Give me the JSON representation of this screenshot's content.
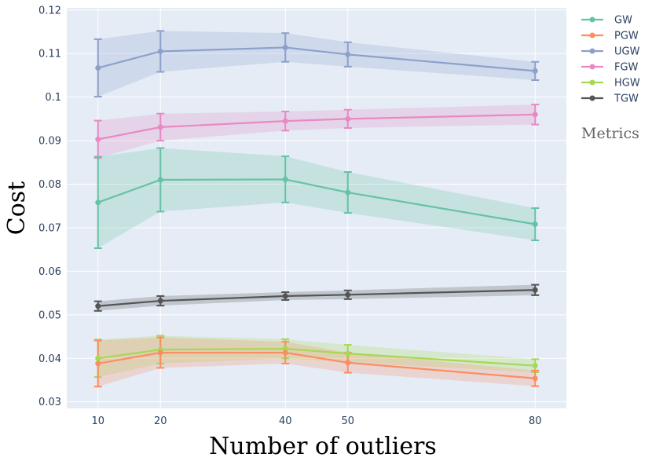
{
  "chart_data": {
    "type": "line",
    "xlabel": "Number of outliers",
    "ylabel": "Cost",
    "x": [
      10,
      20,
      40,
      50,
      80
    ],
    "x_ticks": [
      "10",
      "20",
      "40",
      "50",
      "80"
    ],
    "xlim": [
      5,
      85
    ],
    "ylim": [
      0.0285,
      0.1205
    ],
    "y_ticks": [
      "0.03",
      "0.04",
      "0.05",
      "0.06",
      "0.07",
      "0.08",
      "0.09",
      "0.1",
      "0.11",
      "0.12"
    ],
    "grid": true,
    "legend_title": "Metrics",
    "legend_position": "right",
    "series": [
      {
        "name": "GW",
        "color": "#66c2a5",
        "values": [
          0.0758,
          0.081,
          0.0811,
          0.0781,
          0.0708
        ],
        "error": [
          0.0105,
          0.0073,
          0.0053,
          0.0047,
          0.0037
        ]
      },
      {
        "name": "PGW",
        "color": "#fc8d62",
        "values": [
          0.0388,
          0.0413,
          0.0413,
          0.039,
          0.0354
        ],
        "error": [
          0.0053,
          0.0035,
          0.0025,
          0.0023,
          0.0018
        ]
      },
      {
        "name": "UGW",
        "color": "#8da0cb",
        "values": [
          0.1067,
          0.1105,
          0.1114,
          0.1098,
          0.106
        ],
        "error": [
          0.0066,
          0.0047,
          0.0033,
          0.0028,
          0.0021
        ]
      },
      {
        "name": "FGW",
        "color": "#e78ac3",
        "values": [
          0.0903,
          0.0931,
          0.0945,
          0.095,
          0.096
        ],
        "error": [
          0.0043,
          0.0031,
          0.0022,
          0.0021,
          0.0023
        ]
      },
      {
        "name": "HGW",
        "color": "#a6d854",
        "values": [
          0.04,
          0.042,
          0.0422,
          0.0411,
          0.0383
        ],
        "error": [
          0.0043,
          0.0032,
          0.0022,
          0.002,
          0.0015
        ]
      },
      {
        "name": "TGW",
        "color": "#555555",
        "values": [
          0.052,
          0.0532,
          0.0543,
          0.0546,
          0.0557
        ],
        "error": [
          0.0011,
          0.0011,
          0.0009,
          0.001,
          0.0012
        ]
      }
    ]
  }
}
